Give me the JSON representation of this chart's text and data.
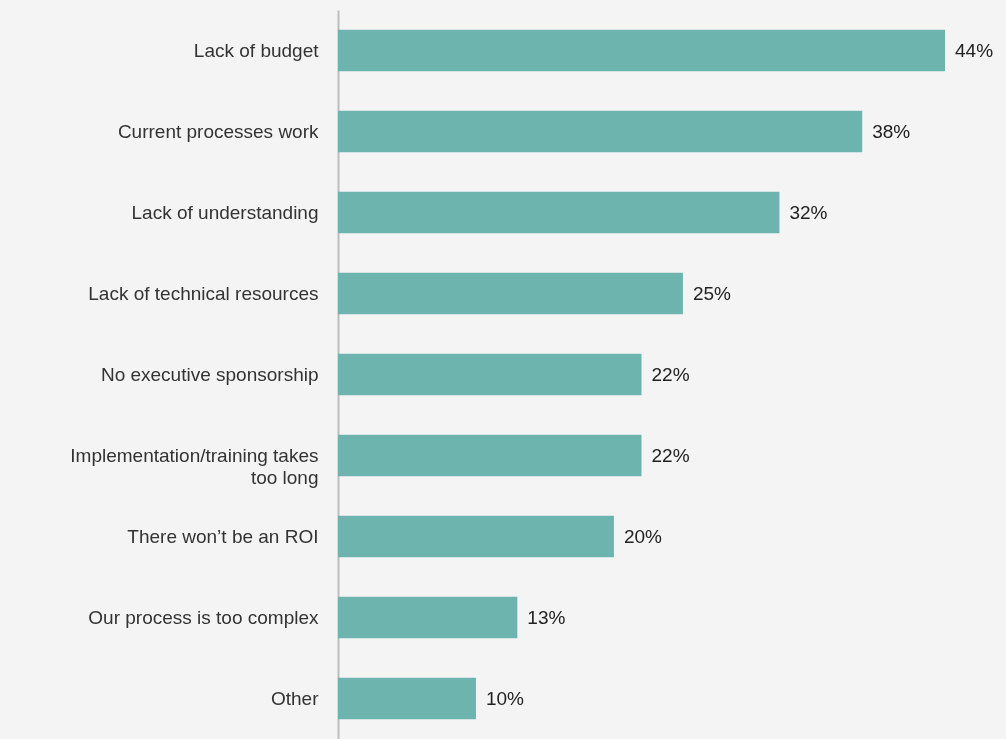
{
  "chart_data": {
    "type": "bar",
    "orientation": "horizontal",
    "categories": [
      "Lack of budget",
      "Current processes work",
      "Lack of understanding",
      "Lack of technical resources",
      "No executive sponsorship",
      "Implementation/training takes too long",
      "There won’t be an ROI",
      "Our process is too complex",
      "Other"
    ],
    "values": [
      44,
      38,
      32,
      25,
      22,
      22,
      20,
      13,
      10
    ],
    "value_labels": [
      "44%",
      "38%",
      "32%",
      "25%",
      "22%",
      "22%",
      "20%",
      "13%",
      "10%"
    ],
    "color": "#6db3ae"
  }
}
